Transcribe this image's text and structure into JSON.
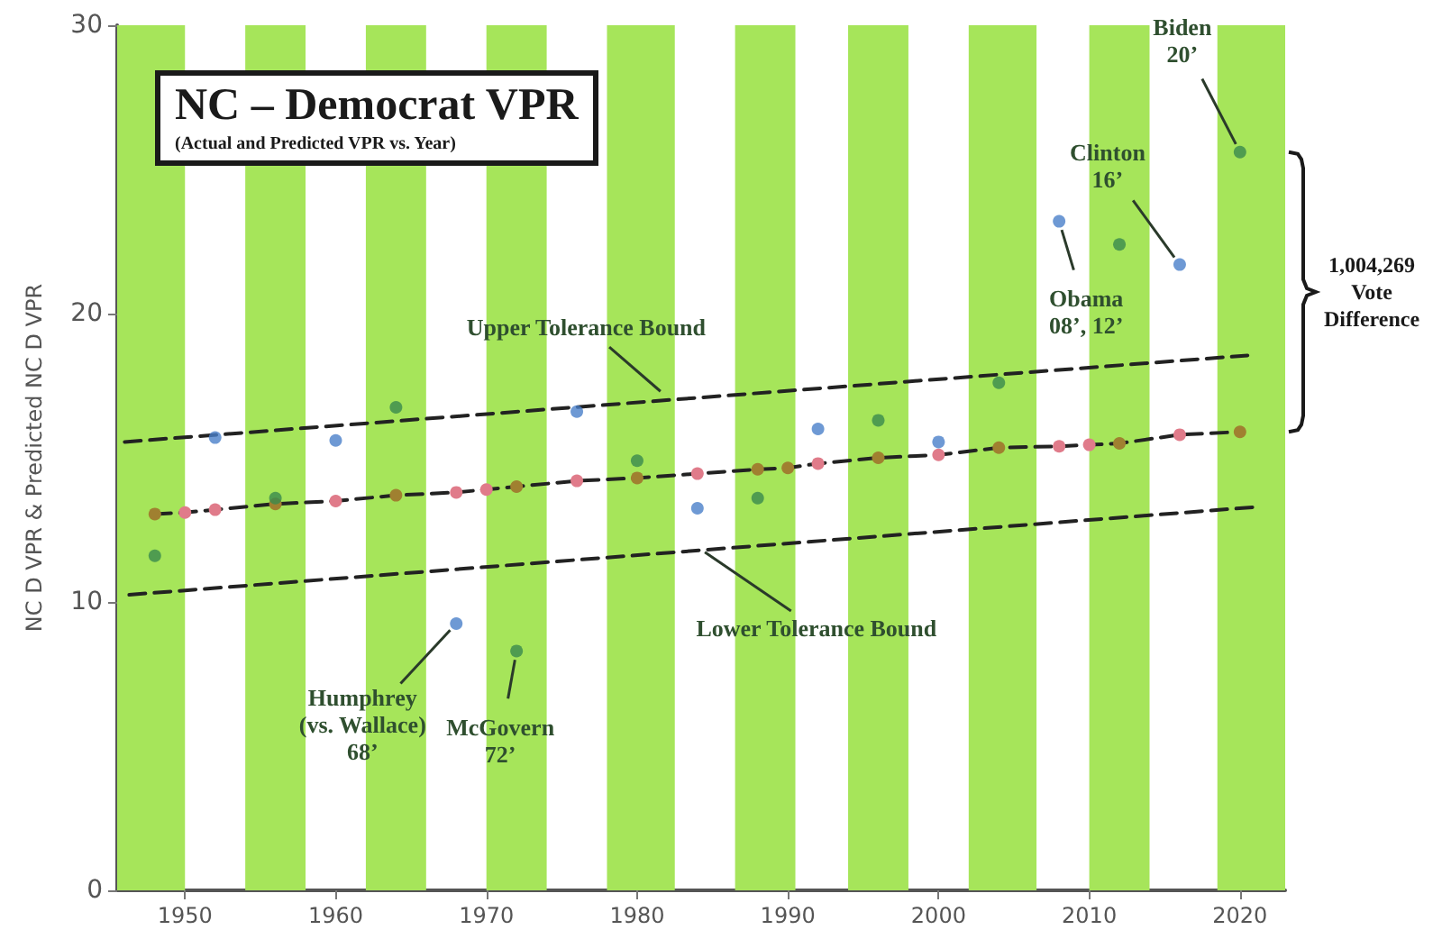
{
  "chart_data": {
    "type": "scatter",
    "title": "NC – Democrat VPR",
    "subtitle": "(Actual and Predicted VPR vs. Year)",
    "ylabel": "NC D VPR & Predicted NC D VPR",
    "xlim": [
      1945.5,
      2023
    ],
    "xticks": [
      1950,
      1960,
      1970,
      1980,
      1990,
      2000,
      2010,
      2020
    ],
    "ylim": [
      0,
      30
    ],
    "yticks": [
      0,
      10,
      20,
      30
    ],
    "grid": false,
    "marker": "circle",
    "series": [
      {
        "x": [
          1948,
          1952,
          1956,
          1960,
          1964,
          1968,
          1972,
          1976,
          1980,
          1984,
          1988,
          1992,
          1996,
          2000,
          2004,
          2008,
          2012,
          2016,
          2020
        ],
        "values": [
          11.6,
          15.7,
          13.6,
          15.6,
          16.75,
          9.25,
          8.3,
          16.6,
          14.9,
          13.25,
          13.6,
          16.0,
          16.3,
          15.55,
          17.6,
          23.2,
          22.4,
          21.7,
          25.6
        ],
        "colors": [
          "#3a8a4e",
          "#4a7fc9",
          "#3a8a4e",
          "#4a7fc9",
          "#3a8a4e",
          "#4a7fc9",
          "#3a8a4e",
          "#4a7fc9",
          "#3a8a4e",
          "#4a7fc9",
          "#3a8a4e",
          "#4a7fc9",
          "#3a8a4e",
          "#4a7fc9",
          "#3a8a4e",
          "#4a7fc9",
          "#3a8a4e",
          "#4a7fc9",
          "#3a8a4e"
        ]
      },
      {
        "type": "line",
        "color": "#222222",
        "line_style": "dashed",
        "x": [
          1948,
          1950,
          1952,
          1956,
          1960,
          1964,
          1968,
          1970,
          1972,
          1976,
          1980,
          1984,
          1988,
          1990,
          1992,
          1996,
          2000,
          2004,
          2008,
          2010,
          2012,
          2016,
          2020
        ],
        "values": [
          13.05,
          13.1,
          13.2,
          13.4,
          13.5,
          13.7,
          13.8,
          13.9,
          14.0,
          14.2,
          14.3,
          14.45,
          14.6,
          14.65,
          14.8,
          15.0,
          15.1,
          15.35,
          15.4,
          15.45,
          15.5,
          15.8,
          15.9
        ],
        "colors": [
          "#a08030",
          "#e07b8a",
          "#e07b8a",
          "#a08030",
          "#e07b8a",
          "#a08030",
          "#e07b8a",
          "#e07b8a",
          "#a08030",
          "#e07b8a",
          "#a08030",
          "#e07b8a",
          "#a08030",
          "#a08030",
          "#e07b8a",
          "#a08030",
          "#e07b8a",
          "#a08030",
          "#e07b8a",
          "#e07b8a",
          "#a08030",
          "#e07b8a",
          "#a08030"
        ]
      },
      {
        "type": "line",
        "color": "#222222",
        "line_style": "dashed",
        "marker": "none",
        "x": [
          1946,
          2020.5
        ],
        "values": [
          15.55,
          18.55
        ]
      },
      {
        "type": "line",
        "color": "#222222",
        "line_style": "dashed",
        "marker": "none",
        "x": [
          1946.3,
          2021.2
        ],
        "values": [
          10.25,
          13.3
        ]
      }
    ],
    "bands": [
      {
        "axis": "x",
        "from": 1945.5,
        "to": 1950,
        "color": "#a6e55a"
      },
      {
        "axis": "x",
        "from": 1954,
        "to": 1958,
        "color": "#a6e55a"
      },
      {
        "axis": "x",
        "from": 1962,
        "to": 1966,
        "color": "#a6e55a"
      },
      {
        "axis": "x",
        "from": 1970,
        "to": 1974,
        "color": "#a6e55a"
      },
      {
        "axis": "x",
        "from": 1978,
        "to": 1982.5,
        "color": "#a6e55a"
      },
      {
        "axis": "x",
        "from": 1986.5,
        "to": 1990.5,
        "color": "#a6e55a"
      },
      {
        "axis": "x",
        "from": 1994,
        "to": 1998,
        "color": "#a6e55a"
      },
      {
        "axis": "x",
        "from": 2002,
        "to": 2006.5,
        "color": "#a6e55a"
      },
      {
        "axis": "x",
        "from": 2010,
        "to": 2014,
        "color": "#a6e55a"
      },
      {
        "axis": "x",
        "from": 2018.5,
        "to": 2023,
        "color": "#a6e55a"
      }
    ],
    "annotations": [
      {
        "text": "Upper Tolerance Bound",
        "x": 1982,
        "y": 17.1
      },
      {
        "text": "Lower Tolerance Bound",
        "x": 1984,
        "y": 11.9
      },
      {
        "text": "Humphrey\n(vs. Wallace)\n68’",
        "x": 1968,
        "y": 9.25
      },
      {
        "text": "McGovern\n72’",
        "x": 1972,
        "y": 8.3
      },
      {
        "text": "Obama\n08’, 12’",
        "x": 2008,
        "y": 23.2
      },
      {
        "text": "Clinton\n16’",
        "x": 2016,
        "y": 21.7
      },
      {
        "text": "Biden\n20’",
        "x": 2020,
        "y": 25.6
      },
      "1,004,269\nVote\nDifference"
    ]
  }
}
